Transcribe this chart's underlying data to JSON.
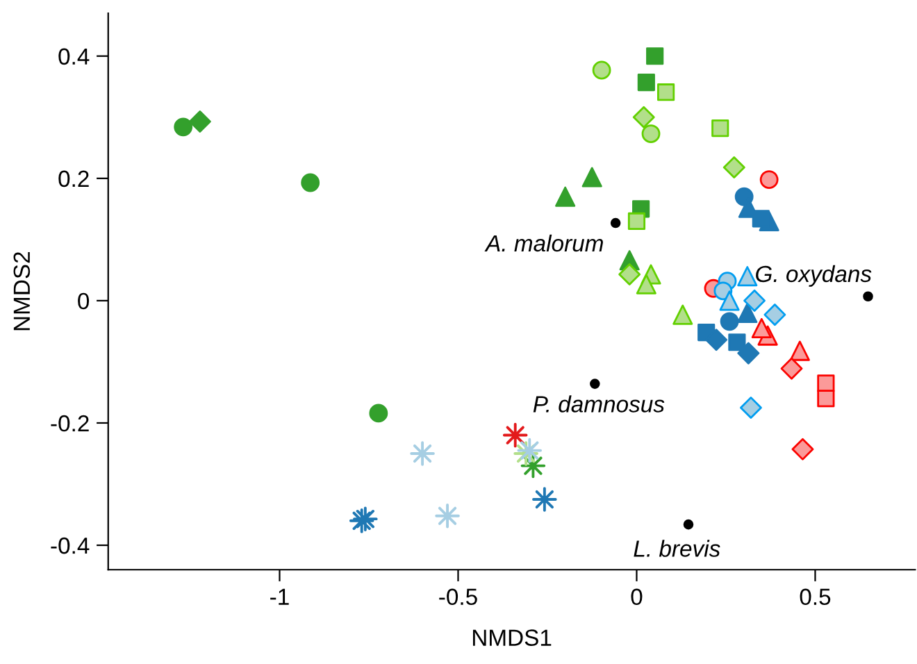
{
  "chart_data": {
    "type": "scatter",
    "xlabel": "NMDS1",
    "ylabel": "NMDS2",
    "xlim": [
      -1.48,
      0.78
    ],
    "ylim": [
      -0.44,
      0.47
    ],
    "xticks": [
      -1,
      -0.5,
      0,
      0.5
    ],
    "yticks": [
      -0.4,
      -0.2,
      0,
      0.2,
      0.4
    ],
    "grid": false,
    "legend": false,
    "series": [
      {
        "color": "#33a02c",
        "marker": "circle",
        "x": [
          -1.27,
          -0.914,
          -0.723
        ],
        "values": [
          0.284,
          0.193,
          -0.184
        ]
      },
      {
        "color": "#33a02c",
        "marker": "diamond",
        "x": [
          -1.223
        ],
        "values": [
          0.293
        ]
      },
      {
        "color": "#33a02c",
        "marker": "square",
        "x": [
          0.051,
          0.027,
          0.012
        ],
        "values": [
          0.4,
          0.357,
          0.15
        ]
      },
      {
        "color": "#33a02c",
        "marker": "triangle",
        "x": [
          -0.125,
          -0.2,
          -0.02
        ],
        "values": [
          0.202,
          0.17,
          0.066
        ]
      },
      {
        "color": "#33a02c",
        "marker": "star",
        "x": [
          -0.29
        ],
        "values": [
          -0.27
        ]
      },
      {
        "color": "#b2df8a",
        "marker": "circle",
        "x": [
          -0.098,
          0.04
        ],
        "values": [
          0.377,
          0.273
        ]
      },
      {
        "color": "#b2df8a",
        "marker": "square",
        "x": [
          0.082,
          0.234,
          0.0
        ],
        "values": [
          0.341,
          0.282,
          0.13
        ]
      },
      {
        "color": "#b2df8a",
        "marker": "diamond",
        "x": [
          0.02,
          0.273,
          -0.02
        ],
        "values": [
          0.3,
          0.218,
          0.043
        ]
      },
      {
        "color": "#b2df8a",
        "marker": "triangle",
        "x": [
          0.04,
          0.027,
          0.129
        ],
        "values": [
          0.043,
          0.027,
          -0.023
        ]
      },
      {
        "color": "#b2df8a",
        "marker": "star",
        "x": [
          -0.31
        ],
        "values": [
          -0.25
        ]
      },
      {
        "color": "#1f78b4",
        "marker": "circle",
        "x": [
          0.301,
          0.26
        ],
        "values": [
          0.17,
          -0.034
        ]
      },
      {
        "color": "#1f78b4",
        "marker": "triangle",
        "x": [
          0.313,
          0.371,
          0.31
        ],
        "values": [
          0.152,
          0.13,
          -0.02
        ]
      },
      {
        "color": "#1f78b4",
        "marker": "square",
        "x": [
          0.348,
          0.195,
          0.281
        ],
        "values": [
          0.134,
          -0.052,
          -0.068
        ]
      },
      {
        "color": "#1f78b4",
        "marker": "diamond",
        "x": [
          0.223,
          0.313
        ],
        "values": [
          -0.064,
          -0.086
        ]
      },
      {
        "color": "#1f78b4",
        "marker": "star",
        "x": [
          -0.76,
          -0.77,
          -0.258
        ],
        "values": [
          -0.357,
          -0.36,
          -0.325
        ]
      },
      {
        "color": "#fb9a99",
        "marker": "circle",
        "x": [
          0.371,
          0.215
        ],
        "values": [
          0.198,
          0.02
        ]
      },
      {
        "color": "#fb9a99",
        "marker": "triangle",
        "x": [
          0.367,
          0.457,
          0.35
        ],
        "values": [
          -0.057,
          -0.082,
          -0.045
        ]
      },
      {
        "color": "#fb9a99",
        "marker": "square",
        "x": [
          0.53,
          0.53
        ],
        "values": [
          -0.135,
          -0.16
        ]
      },
      {
        "color": "#fb9a99",
        "marker": "diamond",
        "x": [
          0.434,
          0.465
        ],
        "values": [
          -0.111,
          -0.243
        ]
      },
      {
        "color": "#e31a1c",
        "marker": "star",
        "x": [
          -0.34
        ],
        "values": [
          -0.22
        ]
      },
      {
        "color": "#a6cee3",
        "marker": "circle",
        "x": [
          0.254,
          0.242
        ],
        "values": [
          0.032,
          0.016
        ]
      },
      {
        "color": "#a6cee3",
        "marker": "diamond",
        "x": [
          0.387,
          0.32,
          0.33
        ],
        "values": [
          -0.023,
          -0.175,
          0.0
        ]
      },
      {
        "color": "#a6cee3",
        "marker": "triangle",
        "x": [
          0.31,
          0.26
        ],
        "values": [
          0.04,
          0.0
        ]
      },
      {
        "color": "#a6cee3",
        "marker": "star",
        "x": [
          -0.6,
          -0.53,
          -0.3
        ],
        "values": [
          -0.25,
          -0.352,
          -0.245
        ]
      },
      {
        "color": "#000000",
        "marker": "circle",
        "x": [
          -0.059,
          0.648,
          -0.117,
          0.145
        ],
        "values": [
          0.127,
          0.007,
          -0.136,
          -0.366
        ]
      }
    ],
    "annotations": [
      {
        "text": "A. malorum",
        "x": -0.059,
        "y": 0.127
      },
      {
        "text": "G. oxydans",
        "x": 0.648,
        "y": 0.007
      },
      {
        "text": "P. damnosus",
        "x": -0.117,
        "y": -0.136
      },
      {
        "text": "L. brevis",
        "x": 0.145,
        "y": -0.366
      }
    ]
  }
}
